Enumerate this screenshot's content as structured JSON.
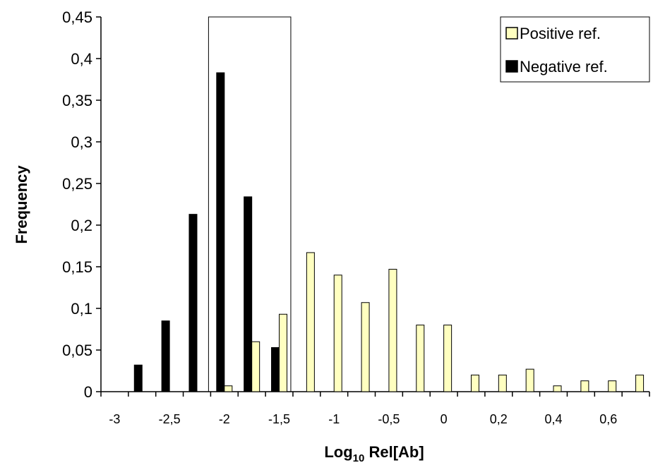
{
  "chart_data": {
    "type": "bar",
    "xlabel": "Log",
    "xlabel_sub": "10",
    "xlabel_rest": " Rel[Ab]",
    "ylabel": "Frequency",
    "ylim": [
      0,
      0.45
    ],
    "yticks": [
      "0",
      "0,05",
      "0,1",
      "0,15",
      "0,2",
      "0,25",
      "0,3",
      "0,35",
      "0,4",
      "0,45"
    ],
    "ytick_values": [
      0,
      0.05,
      0.1,
      0.15,
      0.2,
      0.25,
      0.3,
      0.35,
      0.4,
      0.45
    ],
    "xticks": [
      "-3",
      "-2,5",
      "-2",
      "-1,5",
      "-1",
      "-0,5",
      "0",
      "0,2",
      "0,4",
      "0,6"
    ],
    "legend_position": "top-right",
    "colors": {
      "positive": "#FFFFC0",
      "negative": "#000000"
    },
    "series": [
      {
        "name": "Positive ref.",
        "values": [
          0,
          0,
          0,
          0,
          0.007,
          0.06,
          0.093,
          0.167,
          0.14,
          0.107,
          0.147,
          0.08,
          0.08,
          0.02,
          0.02,
          0.027,
          0.007,
          0.013,
          0.013,
          0.02
        ]
      },
      {
        "name": "Negative ref.",
        "values": [
          0,
          0.032,
          0.085,
          0.213,
          0.383,
          0.234,
          0.053,
          0,
          0,
          0,
          0,
          0,
          0,
          0,
          0,
          0,
          0,
          0,
          0,
          0
        ]
      }
    ],
    "highlight_box": {
      "from_group": 4,
      "to_group": 6
    }
  }
}
